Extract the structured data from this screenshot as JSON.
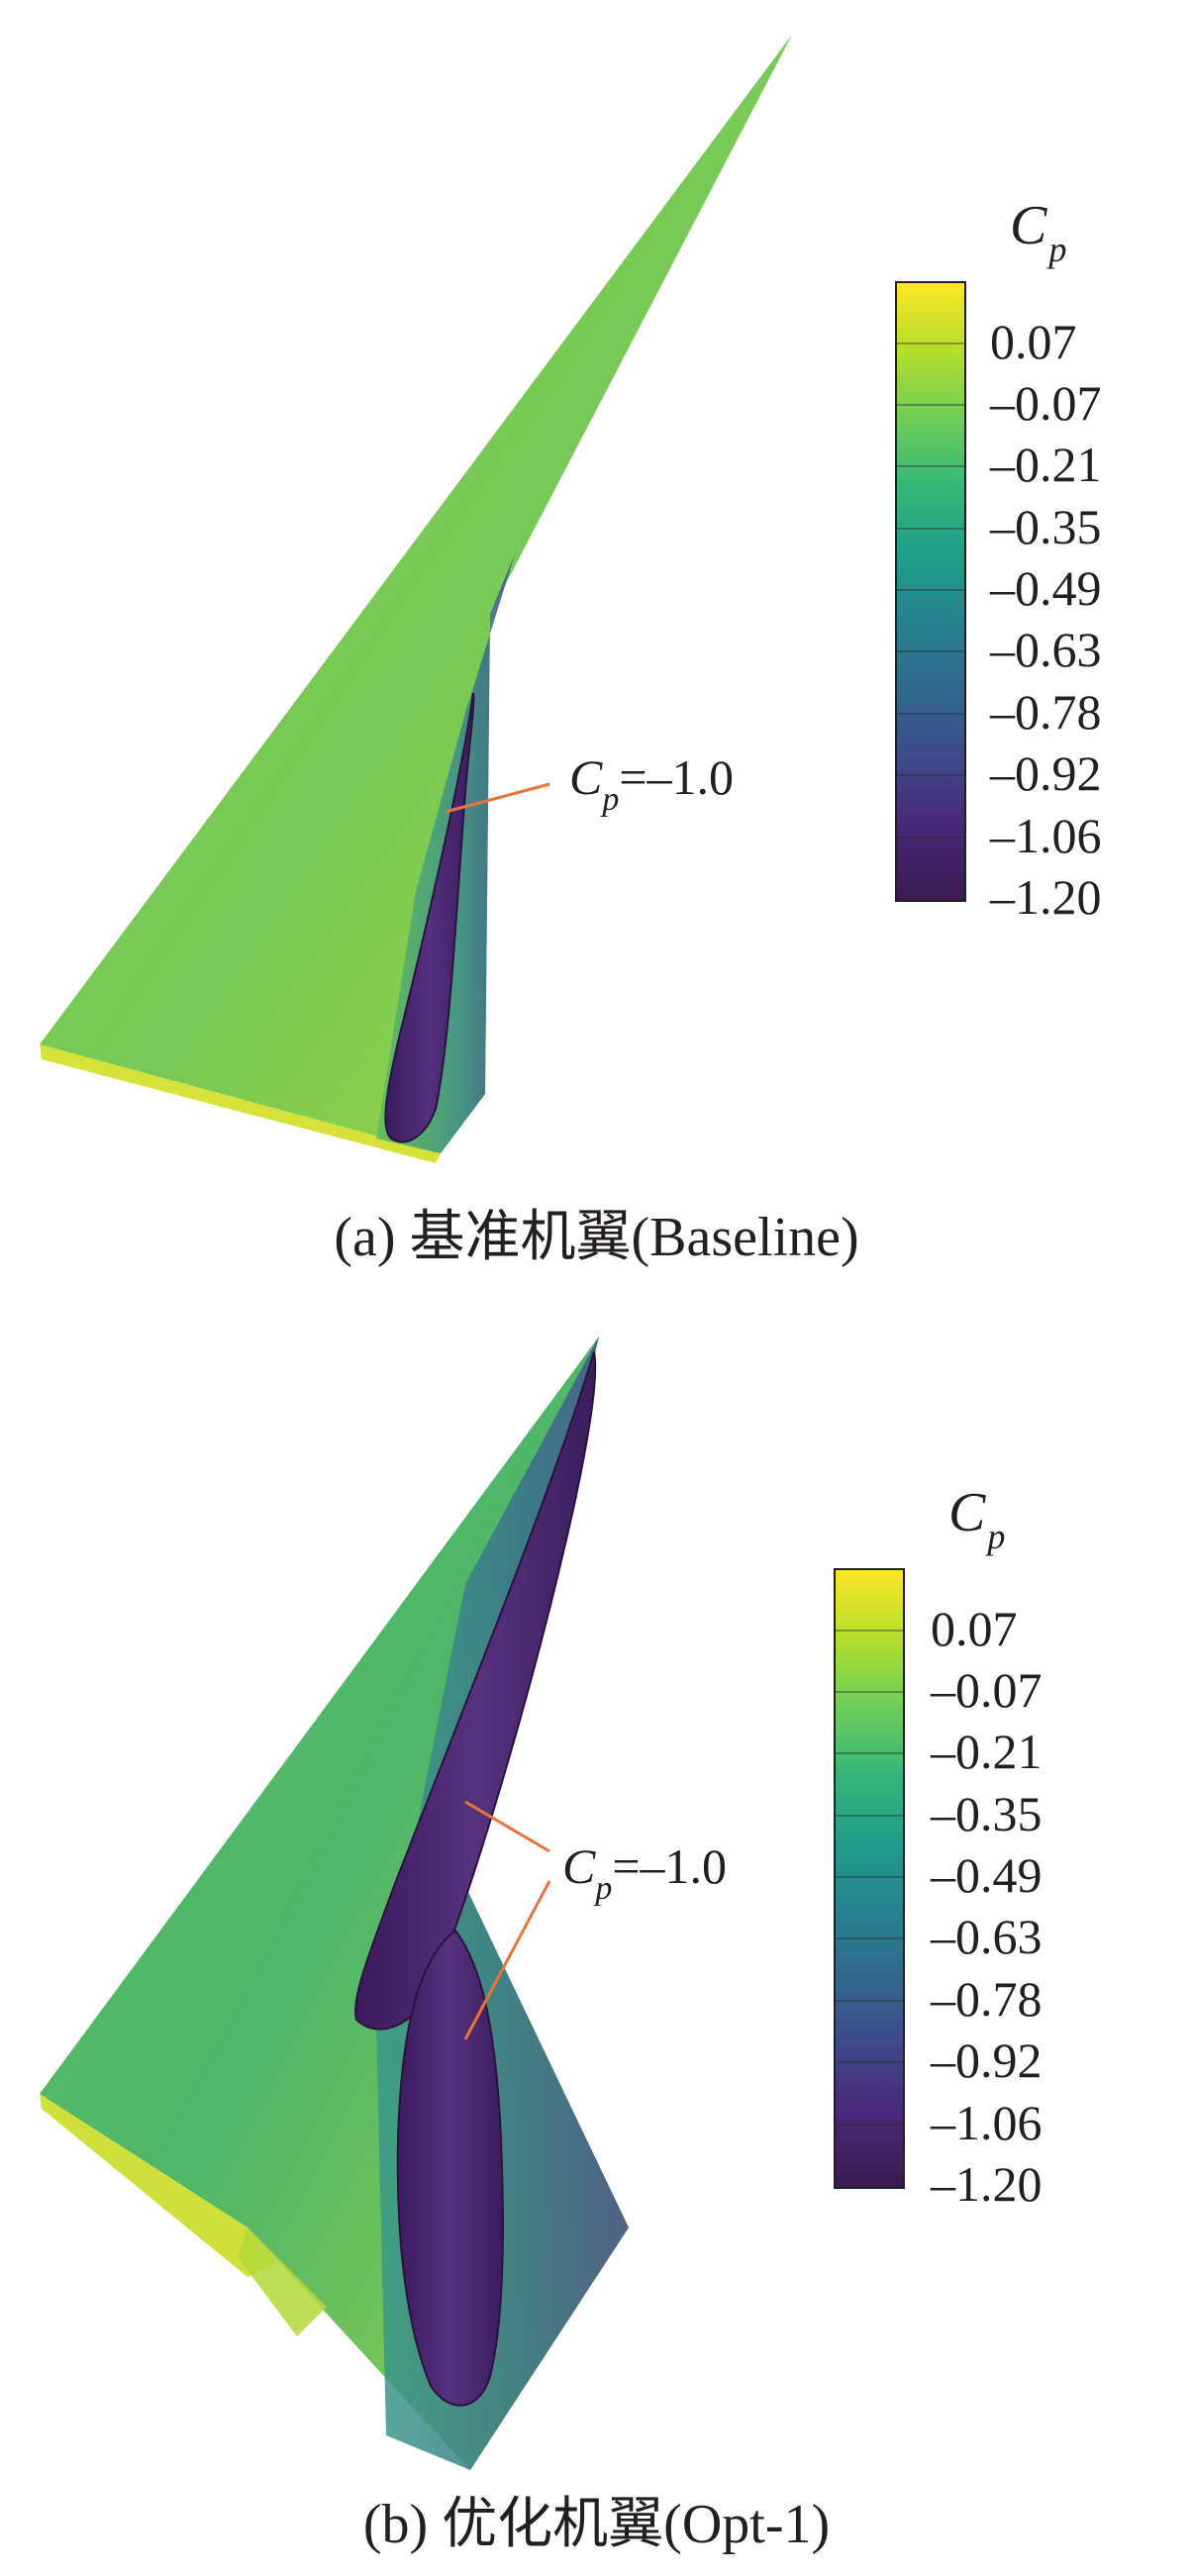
{
  "panels": [
    {
      "id": "a",
      "caption": "(a) 基准机翼(Baseline)",
      "isosurface_labels": [
        "C",
        "p",
        "=–1.0"
      ],
      "colorbar": {
        "title_symbol": "C",
        "title_subscript": "p",
        "ticks": [
          "0.07",
          "–0.07",
          "–0.21",
          "–0.35",
          "–0.49",
          "–0.63",
          "–0.78",
          "–0.92",
          "–1.06",
          "–1.20"
        ]
      }
    },
    {
      "id": "b",
      "caption": "(b) 优化机翼(Opt-1)",
      "isosurface_labels": [
        "C",
        "p",
        "=–1.0"
      ],
      "colorbar": {
        "title_symbol": "C",
        "title_subscript": "p",
        "ticks": [
          "0.07",
          "–0.07",
          "–0.21",
          "–0.35",
          "–0.49",
          "–0.63",
          "–0.78",
          "–0.92",
          "–1.06",
          "–1.20"
        ]
      }
    }
  ],
  "colormap": [
    "#fde725",
    "#b5de2b",
    "#6ece58",
    "#35b779",
    "#1f9e89",
    "#26828e",
    "#31688e",
    "#3e4989",
    "#482878",
    "#440154"
  ],
  "colors": {
    "leader_line": "#e8743b",
    "isosurface": "#4a2a6e"
  }
}
